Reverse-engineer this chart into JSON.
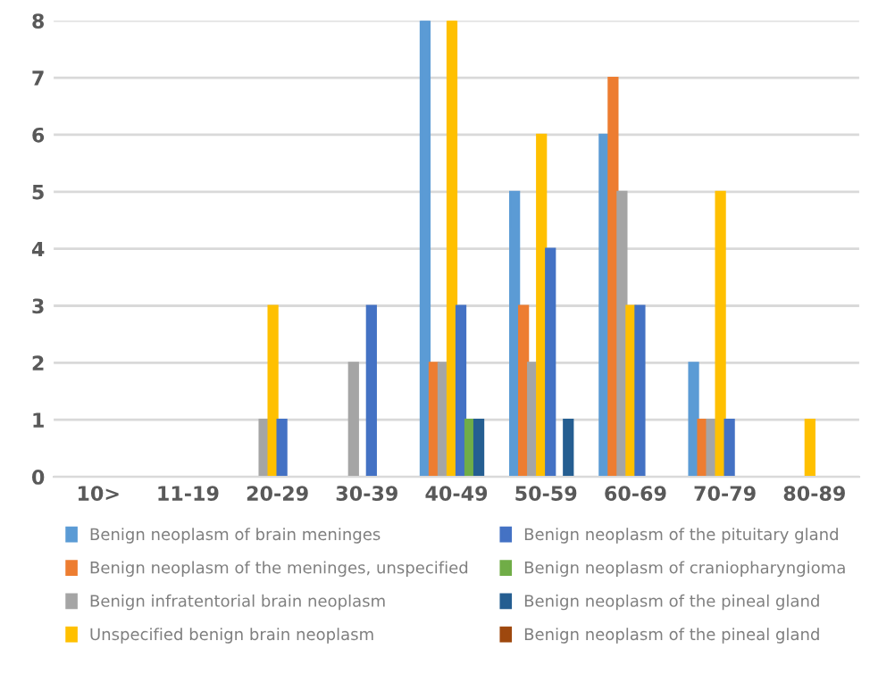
{
  "chart_data": {
    "type": "bar",
    "categories": [
      "10>",
      "11-19",
      "20-29",
      "30-39",
      "40-49",
      "50-59",
      "60-69",
      "70-79",
      "80-89"
    ],
    "series": [
      {
        "name": "Benign neoplasm of brain meninges",
        "color": "#5b9bd5",
        "values": [
          0,
          0,
          0,
          0,
          8,
          5,
          6,
          2,
          0
        ]
      },
      {
        "name": "Benign neoplasm of the meninges, unspecified",
        "color": "#ed7d31",
        "values": [
          0,
          0,
          0,
          0,
          2,
          3,
          7,
          1,
          0
        ]
      },
      {
        "name": "Benign infratentorial brain neoplasm",
        "color": "#a5a5a5",
        "values": [
          0,
          0,
          1,
          2,
          2,
          2,
          5,
          1,
          0
        ]
      },
      {
        "name": "Unspecified benign brain neoplasm",
        "color": "#ffc000",
        "values": [
          0,
          0,
          3,
          0,
          8,
          6,
          3,
          5,
          1
        ]
      },
      {
        "name": "Benign neoplasm of the pituitary gland",
        "color": "#4472c4",
        "values": [
          0,
          0,
          1,
          3,
          3,
          4,
          3,
          1,
          0
        ]
      },
      {
        "name": "Benign neoplasm of craniopharyngioma",
        "color": "#70ad47",
        "values": [
          0,
          0,
          0,
          0,
          1,
          0,
          0,
          0,
          0
        ]
      },
      {
        "name": "Benign neoplasm of the pineal gland",
        "color": "#255e91",
        "values": [
          0,
          0,
          0,
          0,
          1,
          1,
          0,
          0,
          0
        ]
      },
      {
        "name": "Benign neoplasm of the pineal gland",
        "color": "#9e480e",
        "values": [
          0,
          0,
          0,
          0,
          0,
          0,
          0,
          0,
          0
        ]
      }
    ],
    "ylim": [
      0,
      8
    ],
    "yticks": [
      0,
      1,
      2,
      3,
      4,
      5,
      6,
      7,
      8
    ],
    "grid": "y",
    "legend": "bottom"
  }
}
